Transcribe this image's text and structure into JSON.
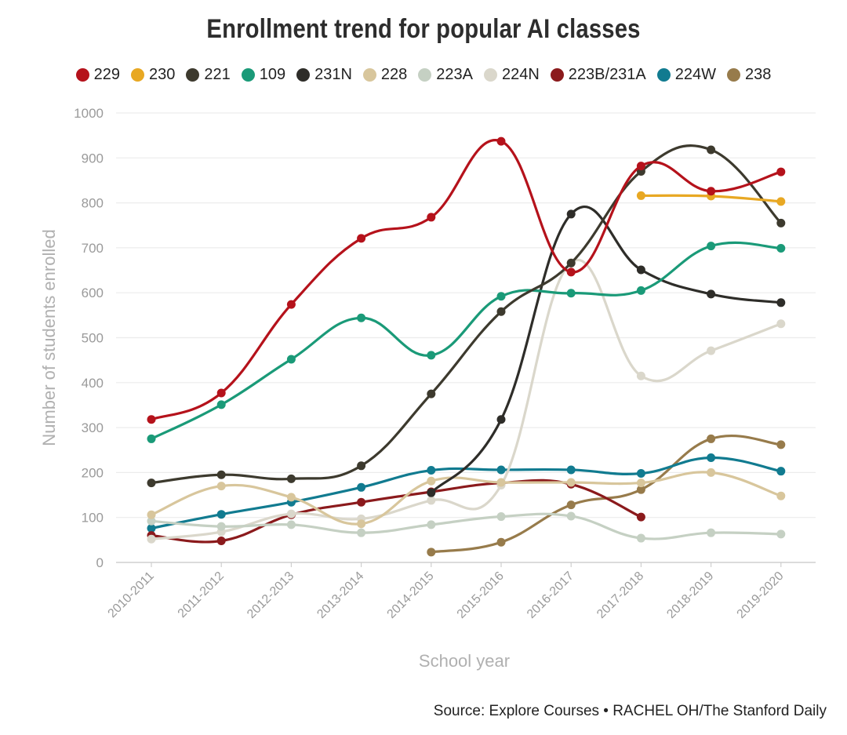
{
  "chart_data": {
    "type": "line",
    "title": "Enrollment trend for popular AI classes",
    "xlabel": "School year",
    "ylabel": "Number of students enrolled",
    "ylim": [
      0,
      1000
    ],
    "yticks": [
      0,
      100,
      200,
      300,
      400,
      500,
      600,
      700,
      800,
      900,
      1000
    ],
    "categories": [
      "2010-2011",
      "2011-2012",
      "2012-2013",
      "2013-2014",
      "2014-2015",
      "2015-2016",
      "2016-2017",
      "2017-2018",
      "2018-2019",
      "2019-2020"
    ],
    "grid": true,
    "legend_position": "top-center",
    "series": [
      {
        "name": "229",
        "color": "#b5121b",
        "values": [
          318,
          377,
          574,
          721,
          768,
          937,
          646,
          882,
          826,
          869
        ]
      },
      {
        "name": "230",
        "color": "#e8a823",
        "values": [
          null,
          null,
          null,
          null,
          null,
          null,
          null,
          816,
          815,
          803
        ]
      },
      {
        "name": "221",
        "color": "#3d3a2e",
        "values": [
          177,
          195,
          186,
          215,
          375,
          558,
          666,
          870,
          918,
          755
        ]
      },
      {
        "name": "109",
        "color": "#1a9a78",
        "values": [
          275,
          351,
          452,
          544,
          461,
          592,
          599,
          605,
          704,
          699
        ]
      },
      {
        "name": "231N",
        "color": "#2e2d29",
        "values": [
          null,
          null,
          null,
          null,
          155,
          318,
          775,
          651,
          597,
          578
        ]
      },
      {
        "name": "228",
        "color": "#d8c69c",
        "values": [
          106,
          170,
          145,
          86,
          181,
          178,
          178,
          177,
          200,
          148
        ]
      },
      {
        "name": "223A",
        "color": "#c5d0c3",
        "values": [
          92,
          80,
          84,
          66,
          84,
          102,
          103,
          54,
          66,
          63
        ]
      },
      {
        "name": "224N",
        "color": "#dad7cb",
        "values": [
          52,
          68,
          108,
          97,
          138,
          172,
          667,
          415,
          471,
          531
        ]
      },
      {
        "name": "223B/231A",
        "color": "#8b1a1c",
        "values": [
          60,
          48,
          106,
          134,
          157,
          177,
          174,
          101,
          null,
          null
        ]
      },
      {
        "name": "224W",
        "color": "#117b90",
        "values": [
          76,
          107,
          134,
          167,
          205,
          206,
          206,
          198,
          233,
          203
        ]
      },
      {
        "name": "238",
        "color": "#977b4b",
        "values": [
          null,
          null,
          null,
          null,
          23,
          45,
          128,
          162,
          275,
          262
        ]
      }
    ],
    "source": "Source: Explore Courses • RACHEL OH/The Stanford Daily"
  }
}
